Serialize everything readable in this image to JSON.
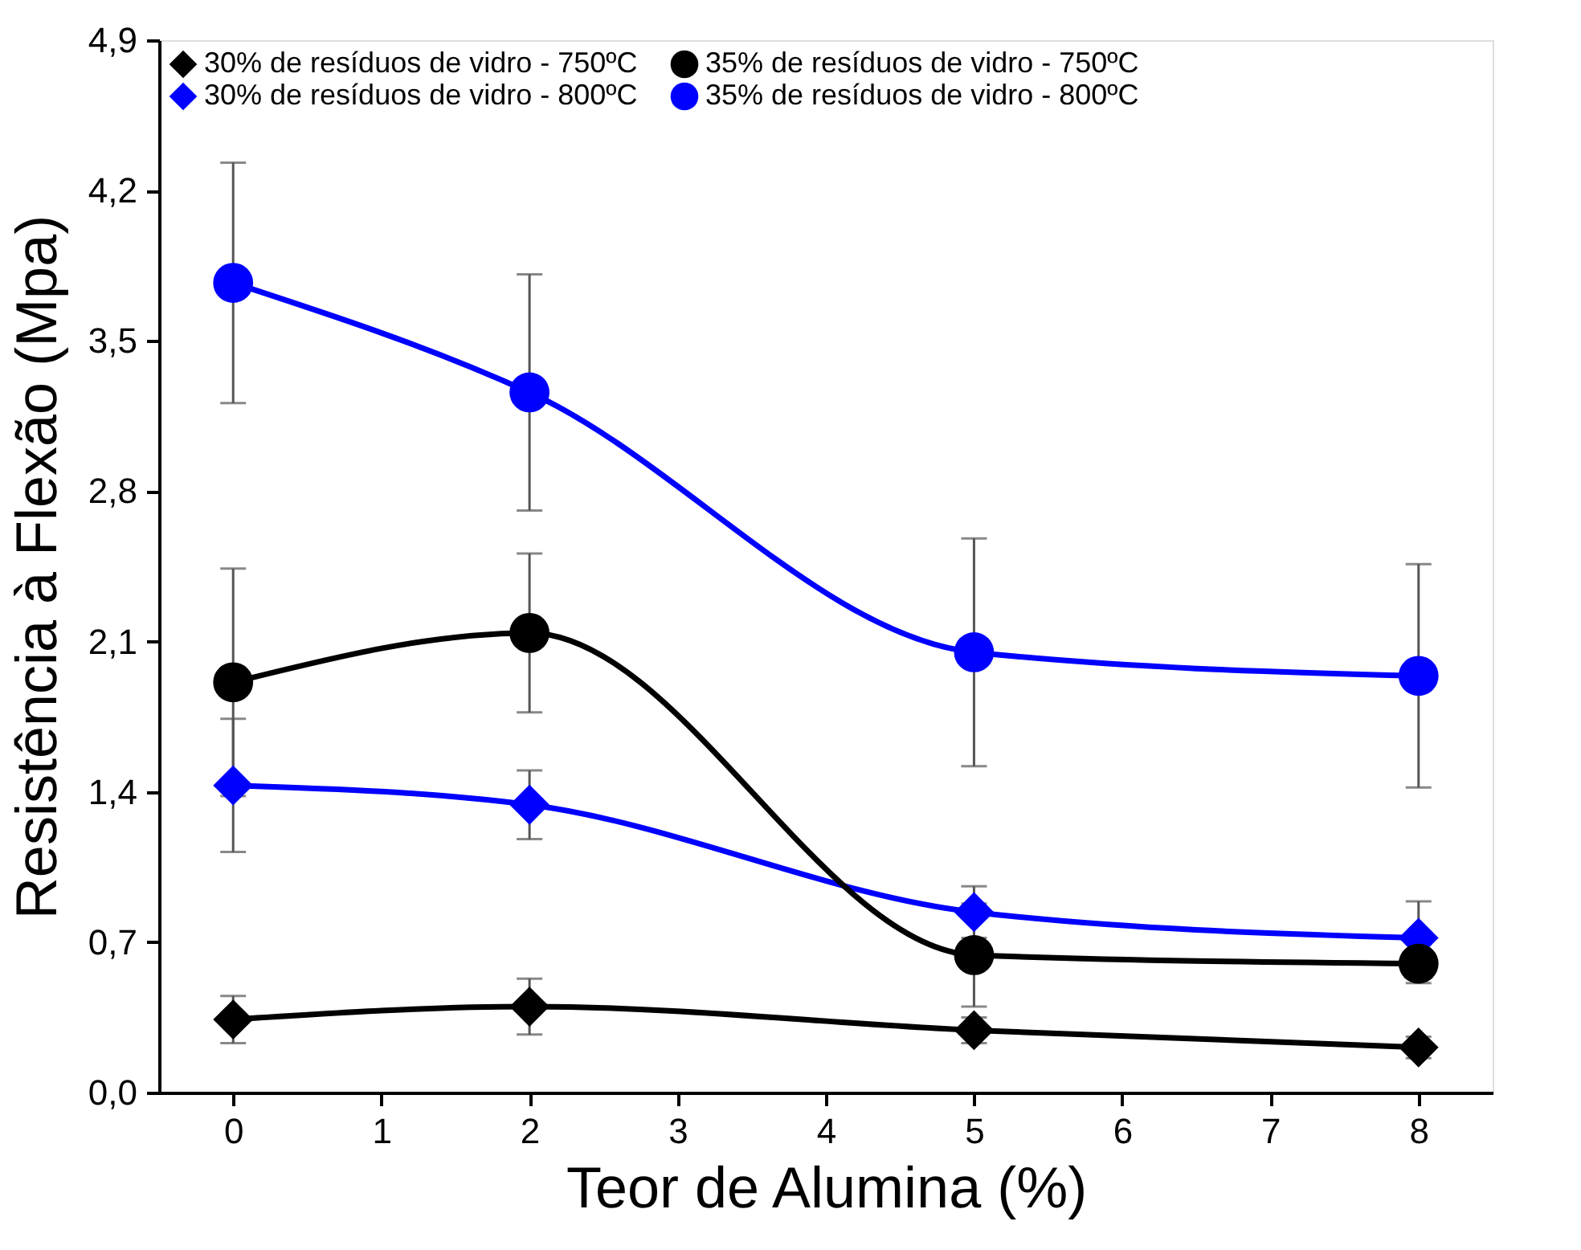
{
  "chart_data": {
    "type": "line",
    "xlabel": "Teor de Alumina (%)",
    "ylabel": "Resistência à Flexão (Mpa)",
    "x": [
      0,
      2,
      5,
      8
    ],
    "xlim": [
      -0.5,
      8.5
    ],
    "xticks": [
      0,
      1,
      2,
      3,
      4,
      5,
      6,
      7,
      8
    ],
    "ylim": [
      0,
      4.9
    ],
    "yticks": [
      {
        "value": 0,
        "label": "0,0"
      },
      {
        "value": 0.7,
        "label": "0,7"
      },
      {
        "value": 1.4,
        "label": "1,4"
      },
      {
        "value": 2.1,
        "label": "2,1"
      },
      {
        "value": 2.8,
        "label": "2,8"
      },
      {
        "value": 3.5,
        "label": "3,5"
      },
      {
        "value": 4.2,
        "label": "4,2"
      },
      {
        "value": 4.9,
        "label": "4,9"
      }
    ],
    "legend": "top",
    "grid": false,
    "line_style": "solid",
    "series": [
      {
        "name": "30% de resíduos de vidro - 750ºC",
        "color": "#000000",
        "marker": "diamond",
        "values": [
          0.34,
          0.4,
          0.29,
          0.21
        ],
        "errors": [
          0.11,
          0.13,
          0.06,
          0.05
        ]
      },
      {
        "name": "30% de resíduos de vidro - 800ºC",
        "color": "#0000ff",
        "marker": "diamond",
        "values": [
          1.43,
          1.34,
          0.84,
          0.72
        ],
        "errors": [
          0.31,
          0.16,
          0.12,
          0.17
        ]
      },
      {
        "name": "35% de resíduos de vidro - 750ºC",
        "color": "#000000",
        "marker": "circle",
        "values": [
          1.91,
          2.14,
          0.64,
          0.6
        ],
        "errors": [
          0.53,
          0.37,
          0.24,
          0.09
        ]
      },
      {
        "name": "35% de resíduos de vidro - 800ºC",
        "color": "#0000ff",
        "marker": "circle",
        "values": [
          3.77,
          3.26,
          2.05,
          1.94
        ],
        "errors": [
          0.56,
          0.55,
          0.53,
          0.52
        ]
      }
    ]
  }
}
